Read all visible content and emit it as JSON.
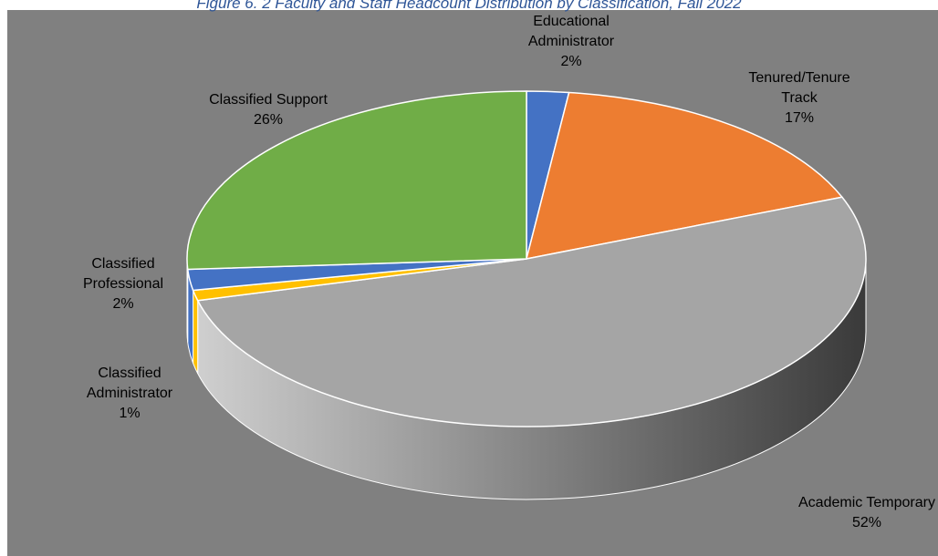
{
  "caption": "Figure 6. 2 Faculty and Staff Headcount Distribution by Classification, Fall 2022",
  "chart_data": {
    "type": "pie",
    "style": "3d",
    "slices": [
      {
        "name": "Educational Administrator",
        "lines": [
          "Educational",
          "Administrator"
        ],
        "value": 2,
        "label": "2%",
        "color": "#4472C4"
      },
      {
        "name": "Tenured/Tenure Track",
        "lines": [
          "Tenured/Tenure",
          "Track"
        ],
        "value": 17,
        "label": "17%",
        "color": "#ED7D31"
      },
      {
        "name": "Academic Temporary",
        "lines": [
          "Academic Temporary"
        ],
        "value": 52,
        "label": "52%",
        "color": "#A5A5A5"
      },
      {
        "name": "Classified Administrator",
        "lines": [
          "Classified",
          "Administrator"
        ],
        "value": 1,
        "label": "1%",
        "color": "#FFC000"
      },
      {
        "name": "Classified Professional",
        "lines": [
          "Classified",
          "Professional"
        ],
        "value": 2,
        "label": "2%",
        "color": "#4472C4"
      },
      {
        "name": "Classified Support",
        "lines": [
          "Classified Support"
        ],
        "value": 26,
        "label": "26%",
        "color": "#70AD47"
      }
    ]
  }
}
